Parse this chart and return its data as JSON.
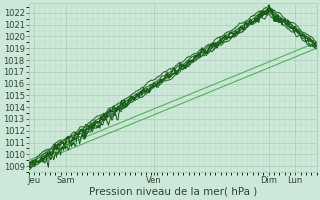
{
  "xlabel": "Pression niveau de la mer( hPa )",
  "ylim": [
    1008.5,
    1022.8
  ],
  "xlim": [
    0,
    108
  ],
  "yticks": [
    1009,
    1010,
    1011,
    1012,
    1013,
    1014,
    1015,
    1016,
    1017,
    1018,
    1019,
    1020,
    1021,
    1022
  ],
  "xtick_positions": [
    2,
    14,
    47,
    90,
    100
  ],
  "xtick_labels": [
    "Jeu",
    "Sam",
    "Ven",
    "Dim",
    "Lun"
  ],
  "background_color": "#cce8d8",
  "grid_major_color": "#aaccb8",
  "grid_minor_color": "#bbddc8",
  "line_color_dark": "#1a5c1a",
  "line_color_light": "#4aaa4a",
  "text_color": "#334433",
  "tick_fontsize": 6,
  "label_fontsize": 7.5
}
